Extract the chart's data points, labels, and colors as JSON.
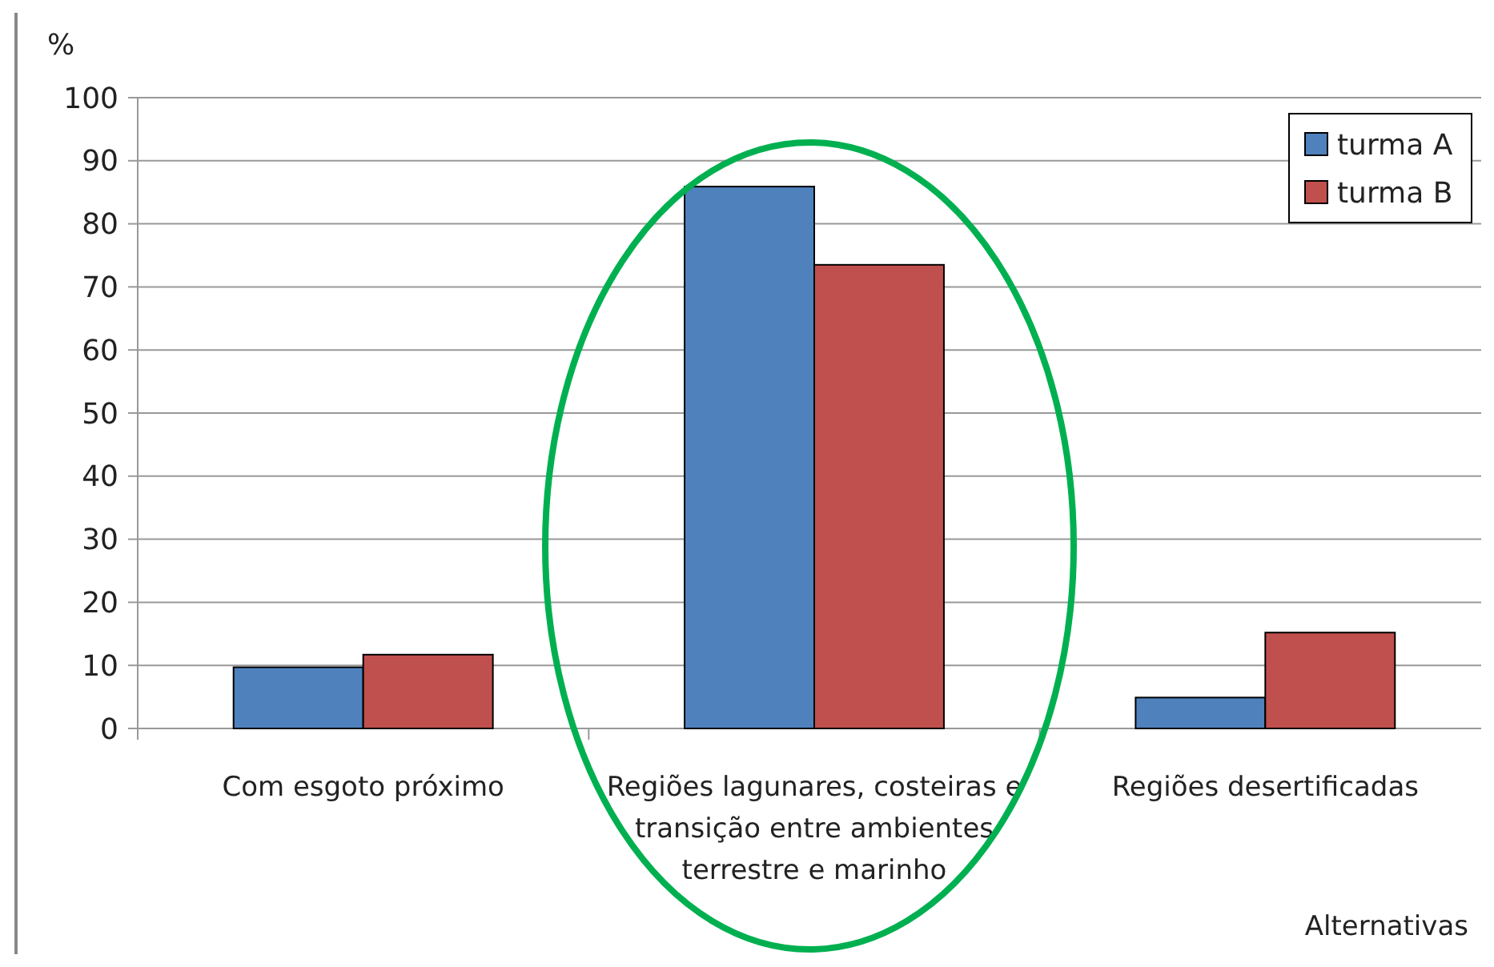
{
  "chart_data": {
    "type": "bar",
    "ylabel": "%",
    "xlabel": "Alternativas",
    "categories": [
      "Com esgoto próximo",
      "Regiões lagunares, costeiras e transição entre ambientes terrestre e marinho",
      "Regiões desertificadas"
    ],
    "series": [
      {
        "name": "turma A",
        "color": "#4f81bd",
        "values": [
          9.7,
          85.9,
          4.9
        ]
      },
      {
        "name": "turma B",
        "color": "#c0504d",
        "values": [
          11.7,
          73.5,
          15.2
        ]
      }
    ],
    "ylim": [
      0,
      100
    ],
    "yticks": [
      0,
      10,
      20,
      30,
      40,
      50,
      60,
      70,
      80,
      90,
      100
    ],
    "grid": "y",
    "legend": "top right"
  }
}
